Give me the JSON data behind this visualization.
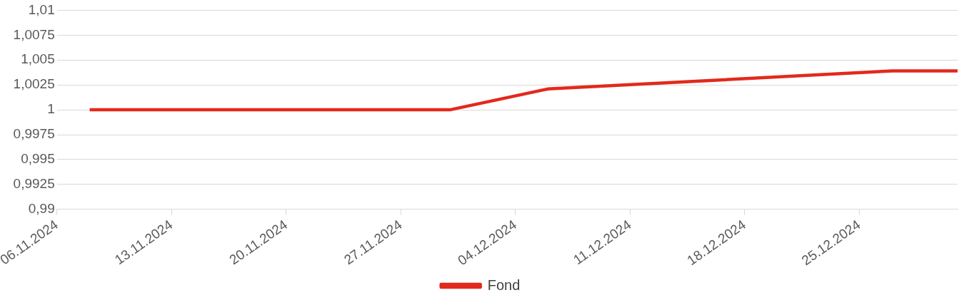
{
  "chart_data": {
    "type": "line",
    "x": [
      "2024-11-08",
      "2024-11-30",
      "2024-12-06",
      "2024-12-27",
      "2024-12-31"
    ],
    "series": [
      {
        "name": "Fond",
        "color": "#e3291d",
        "values": [
          1,
          1,
          1.0021,
          1.0039,
          1.0039
        ]
      }
    ],
    "xlim": [
      "2024-11-06",
      "2024-12-31"
    ],
    "xticks": [
      {
        "value": "2024-11-06",
        "label": "06.11.2024"
      },
      {
        "value": "2024-11-13",
        "label": "13.11.2024"
      },
      {
        "value": "2024-11-20",
        "label": "20.11.2024"
      },
      {
        "value": "2024-11-27",
        "label": "27.11.2024"
      },
      {
        "value": "2024-12-04",
        "label": "04.12.2024"
      },
      {
        "value": "2024-12-11",
        "label": "11.12.2024"
      },
      {
        "value": "2024-12-18",
        "label": "18.12.2024"
      },
      {
        "value": "2024-12-25",
        "label": "25.12.2024"
      }
    ],
    "ylim": [
      0.99,
      1.01
    ],
    "yticks": [
      {
        "value": 0.99,
        "label": "0,99"
      },
      {
        "value": 0.9925,
        "label": "0,9925"
      },
      {
        "value": 0.995,
        "label": "0,995"
      },
      {
        "value": 0.9975,
        "label": "0,9975"
      },
      {
        "value": 1,
        "label": "1"
      },
      {
        "value": 1.0025,
        "label": "1,0025"
      },
      {
        "value": 1.005,
        "label": "1,005"
      },
      {
        "value": 1.0075,
        "label": "1,0075"
      },
      {
        "value": 1.01,
        "label": "1,01"
      }
    ],
    "grid": "y",
    "legend": "bottom",
    "marker": "none",
    "line_style": "solid"
  }
}
